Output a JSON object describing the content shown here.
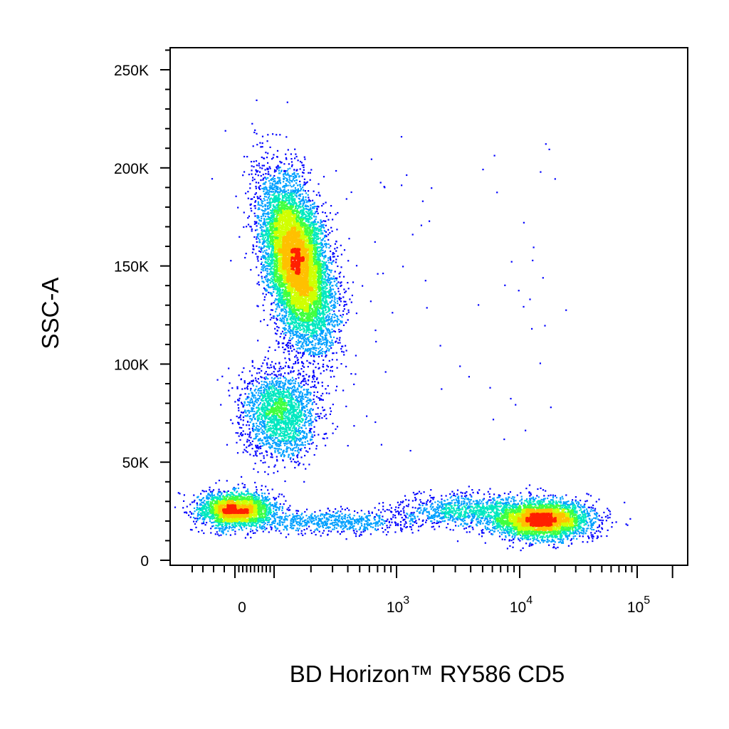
{
  "chart_data": {
    "type": "scatter",
    "style": "flow-cytometry pseudocolor density dot plot",
    "xlabel": "BD Horizon™ RY586 CD5",
    "ylabel": "SSC-A",
    "x_scale": "biexponential",
    "y_scale": "linear",
    "xlim": [
      -40,
      100000
    ],
    "ylim": [
      0,
      262144
    ],
    "x_ticks": [
      {
        "value": 0,
        "label": "0",
        "base": "0",
        "exp": ""
      },
      {
        "value": 1000,
        "label": "10^3",
        "base": "10",
        "exp": "3"
      },
      {
        "value": 10000,
        "label": "10^4",
        "base": "10",
        "exp": "4"
      },
      {
        "value": 100000,
        "label": "10^5",
        "base": "10",
        "exp": "5"
      }
    ],
    "y_ticks": [
      {
        "value": 0,
        "label": "0"
      },
      {
        "value": 50000,
        "label": "50K"
      },
      {
        "value": 100000,
        "label": "100K"
      },
      {
        "value": 150000,
        "label": "150K"
      },
      {
        "value": 200000,
        "label": "200K"
      },
      {
        "value": 250000,
        "label": "250K"
      }
    ],
    "grid": false,
    "legend": "none",
    "density_colors": [
      "#0000ff",
      "#00a0ff",
      "#00e8c0",
      "#40ff40",
      "#d0ff00",
      "#ffc000",
      "#ff2000"
    ],
    "populations": [
      {
        "id": "cd5-negative-high-ssc",
        "x_center": 150,
        "y_center": 152000,
        "points": 9000
      },
      {
        "id": "cd5-negative-mid-ssc",
        "x_center": 110,
        "y_center": 75000,
        "points": 2200
      },
      {
        "id": "cd5-negative-low-ssc",
        "x_center": 0,
        "y_center": 26000,
        "points": 2600
      },
      {
        "id": "cd5-bridge",
        "x_center": 300,
        "y_center": 20000,
        "points": 700
      },
      {
        "id": "cd5-intermediate",
        "x_center": 3500,
        "y_center": 26000,
        "points": 900
      },
      {
        "id": "cd5-positive",
        "x_center": 15000,
        "y_center": 21000,
        "points": 3800
      },
      {
        "id": "sparse-events",
        "x_center": 2000,
        "y_center": 120000,
        "points": 70
      }
    ]
  }
}
